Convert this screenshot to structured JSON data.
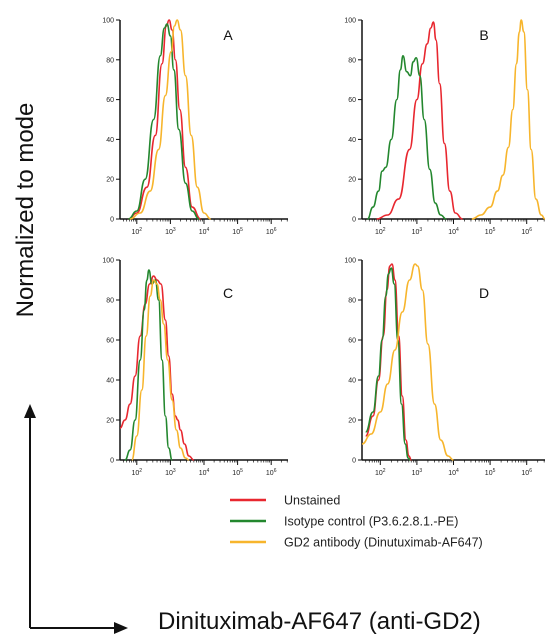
{
  "figure": {
    "ylabel": "Normalized to mode",
    "xlabel": "Dinituximab-AF647 (anti-GD2)"
  },
  "legend": [
    {
      "label": "Unstained",
      "color": "#e8272f"
    },
    {
      "label": "Isotype control (P3.6.2.8.1.-PE)",
      "color": "#23872e"
    },
    {
      "label": "GD2 antibody (Dinutuximab-AF647)",
      "color": "#f7b52c"
    }
  ],
  "chart_data": [
    {
      "type": "line",
      "title": "A",
      "xscale": "log",
      "xlim_exponent": [
        1.5,
        6.5
      ],
      "xticks": [
        "10^2",
        "10^3",
        "10^4",
        "10^5",
        "10^6"
      ],
      "ylim": [
        0,
        100
      ],
      "yticks": [
        0,
        20,
        40,
        60,
        80,
        100
      ],
      "series": [
        {
          "name": "Unstained",
          "color": "#e8272f",
          "points": [
            [
              1.75,
              0
            ],
            [
              2.0,
              3
            ],
            [
              2.3,
              16
            ],
            [
              2.55,
              42
            ],
            [
              2.75,
              78
            ],
            [
              2.88,
              97
            ],
            [
              2.96,
              100
            ],
            [
              3.05,
              95
            ],
            [
              3.15,
              80
            ],
            [
              3.28,
              55
            ],
            [
              3.45,
              26
            ],
            [
              3.65,
              6
            ],
            [
              3.9,
              0
            ]
          ]
        },
        {
          "name": "Isotype control (P3.6.2.8.1.-PE)",
          "color": "#23872e",
          "points": [
            [
              1.75,
              0
            ],
            [
              2.0,
              4
            ],
            [
              2.25,
              20
            ],
            [
              2.5,
              50
            ],
            [
              2.7,
              82
            ],
            [
              2.82,
              96
            ],
            [
              2.9,
              98
            ],
            [
              3.0,
              92
            ],
            [
              3.1,
              75
            ],
            [
              3.25,
              45
            ],
            [
              3.45,
              18
            ],
            [
              3.65,
              4
            ],
            [
              3.85,
              0
            ]
          ]
        },
        {
          "name": "GD2 antibody (Dinutuximab-AF647)",
          "color": "#f7b52c",
          "points": [
            [
              1.8,
              0
            ],
            [
              2.1,
              3
            ],
            [
              2.4,
              14
            ],
            [
              2.65,
              35
            ],
            [
              2.85,
              62
            ],
            [
              3.02,
              84
            ],
            [
              3.12,
              97
            ],
            [
              3.2,
              100
            ],
            [
              3.3,
              95
            ],
            [
              3.45,
              72
            ],
            [
              3.62,
              42
            ],
            [
              3.8,
              16
            ],
            [
              4.0,
              3
            ],
            [
              4.2,
              0
            ]
          ]
        }
      ]
    },
    {
      "type": "line",
      "title": "B",
      "xscale": "log",
      "xlim_exponent": [
        1.5,
        6.5
      ],
      "xticks": [
        "10^2",
        "10^3",
        "10^4",
        "10^5",
        "10^6"
      ],
      "ylim": [
        0,
        100
      ],
      "yticks": [
        0,
        20,
        40,
        60,
        80,
        100
      ],
      "series": [
        {
          "name": "Unstained",
          "color": "#e8272f",
          "points": [
            [
              1.9,
              0
            ],
            [
              2.2,
              2
            ],
            [
              2.5,
              10
            ],
            [
              2.8,
              35
            ],
            [
              3.0,
              60
            ],
            [
              3.15,
              78
            ],
            [
              3.28,
              88
            ],
            [
              3.38,
              96
            ],
            [
              3.45,
              99
            ],
            [
              3.52,
              90
            ],
            [
              3.62,
              68
            ],
            [
              3.75,
              38
            ],
            [
              3.9,
              14
            ],
            [
              4.05,
              3
            ],
            [
              4.25,
              0
            ]
          ]
        },
        {
          "name": "Isotype control (P3.6.2.8.1.-PE)",
          "color": "#23872e",
          "points": [
            [
              1.65,
              0
            ],
            [
              1.8,
              6
            ],
            [
              1.95,
              14
            ],
            [
              2.05,
              24
            ],
            [
              2.15,
              26
            ],
            [
              2.3,
              40
            ],
            [
              2.45,
              60
            ],
            [
              2.55,
              75
            ],
            [
              2.62,
              82
            ],
            [
              2.72,
              74
            ],
            [
              2.82,
              72
            ],
            [
              2.9,
              79
            ],
            [
              2.98,
              81
            ],
            [
              3.08,
              72
            ],
            [
              3.2,
              50
            ],
            [
              3.35,
              25
            ],
            [
              3.5,
              8
            ],
            [
              3.65,
              2
            ],
            [
              3.8,
              0
            ]
          ]
        },
        {
          "name": "GD2 antibody (Dinutuximab-AF647)",
          "color": "#f7b52c",
          "points": [
            [
              4.5,
              0
            ],
            [
              4.75,
              2
            ],
            [
              5.0,
              6
            ],
            [
              5.2,
              14
            ],
            [
              5.35,
              22
            ],
            [
              5.5,
              36
            ],
            [
              5.62,
              55
            ],
            [
              5.72,
              78
            ],
            [
              5.8,
              94
            ],
            [
              5.85,
              100
            ],
            [
              5.92,
              94
            ],
            [
              6.02,
              65
            ],
            [
              6.12,
              35
            ],
            [
              6.25,
              10
            ],
            [
              6.4,
              2
            ],
            [
              6.5,
              0
            ]
          ]
        }
      ]
    },
    {
      "type": "line",
      "title": "C",
      "xscale": "log",
      "xlim_exponent": [
        1.5,
        6.5
      ],
      "xticks": [
        "10^2",
        "10^3",
        "10^4",
        "10^5",
        "10^6"
      ],
      "ylim": [
        0,
        100
      ],
      "yticks": [
        0,
        20,
        40,
        60,
        80,
        100
      ],
      "series": [
        {
          "name": "Unstained",
          "color": "#e8272f",
          "points": [
            [
              1.5,
              16
            ],
            [
              1.65,
              20
            ],
            [
              1.8,
              28
            ],
            [
              1.95,
              42
            ],
            [
              2.1,
              62
            ],
            [
              2.25,
              78
            ],
            [
              2.38,
              88
            ],
            [
              2.5,
              92
            ],
            [
              2.6,
              90
            ],
            [
              2.72,
              88
            ],
            [
              2.85,
              70
            ],
            [
              2.95,
              52
            ],
            [
              3.05,
              33
            ],
            [
              3.15,
              22
            ],
            [
              3.22,
              20
            ],
            [
              3.3,
              15
            ],
            [
              3.42,
              8
            ],
            [
              3.55,
              2
            ],
            [
              3.7,
              0
            ]
          ]
        },
        {
          "name": "Isotype control (P3.6.2.8.1.-PE)",
          "color": "#23872e",
          "points": [
            [
              1.65,
              0
            ],
            [
              1.8,
              5
            ],
            [
              1.95,
              20
            ],
            [
              2.1,
              50
            ],
            [
              2.22,
              75
            ],
            [
              2.3,
              90
            ],
            [
              2.36,
              95
            ],
            [
              2.45,
              88
            ],
            [
              2.55,
              90
            ],
            [
              2.65,
              80
            ],
            [
              2.75,
              50
            ],
            [
              2.85,
              22
            ],
            [
              2.95,
              6
            ],
            [
              3.05,
              0
            ]
          ]
        },
        {
          "name": "GD2 antibody (Dinutuximab-AF647)",
          "color": "#f7b52c",
          "points": [
            [
              1.85,
              0
            ],
            [
              2.0,
              12
            ],
            [
              2.15,
              35
            ],
            [
              2.28,
              62
            ],
            [
              2.4,
              82
            ],
            [
              2.5,
              90
            ],
            [
              2.6,
              88
            ],
            [
              2.7,
              80
            ],
            [
              2.8,
              68
            ],
            [
              2.92,
              50
            ],
            [
              3.05,
              30
            ],
            [
              3.18,
              15
            ],
            [
              3.3,
              6
            ],
            [
              3.45,
              1
            ],
            [
              3.55,
              0
            ]
          ]
        }
      ]
    },
    {
      "type": "line",
      "title": "D",
      "xscale": "log",
      "xlim_exponent": [
        1.5,
        6.5
      ],
      "xticks": [
        "10^2",
        "10^3",
        "10^4",
        "10^5",
        "10^6"
      ],
      "ylim": [
        0,
        100
      ],
      "yticks": [
        0,
        20,
        40,
        60,
        80,
        100
      ],
      "series": [
        {
          "name": "Unstained",
          "color": "#e8272f",
          "points": [
            [
              1.6,
              12
            ],
            [
              1.8,
              22
            ],
            [
              1.95,
              40
            ],
            [
              2.08,
              62
            ],
            [
              2.18,
              85
            ],
            [
              2.26,
              97
            ],
            [
              2.32,
              98
            ],
            [
              2.4,
              90
            ],
            [
              2.5,
              62
            ],
            [
              2.6,
              32
            ],
            [
              2.7,
              10
            ],
            [
              2.78,
              2
            ],
            [
              2.85,
              0
            ]
          ]
        },
        {
          "name": "Isotype control (P3.6.2.8.1.-PE)",
          "color": "#23872e",
          "points": [
            [
              1.6,
              14
            ],
            [
              1.8,
              24
            ],
            [
              1.95,
              42
            ],
            [
              2.05,
              60
            ],
            [
              2.15,
              82
            ],
            [
              2.22,
              93
            ],
            [
              2.3,
              96
            ],
            [
              2.38,
              88
            ],
            [
              2.48,
              60
            ],
            [
              2.58,
              28
            ],
            [
              2.68,
              8
            ],
            [
              2.76,
              1
            ],
            [
              2.82,
              0
            ]
          ]
        },
        {
          "name": "GD2 antibody (Dinutuximab-AF647)",
          "color": "#f7b52c",
          "points": [
            [
              1.5,
              8
            ],
            [
              1.75,
              13
            ],
            [
              2.0,
              24
            ],
            [
              2.2,
              38
            ],
            [
              2.4,
              55
            ],
            [
              2.6,
              74
            ],
            [
              2.8,
              90
            ],
            [
              2.95,
              98
            ],
            [
              3.02,
              97
            ],
            [
              3.15,
              85
            ],
            [
              3.3,
              58
            ],
            [
              3.48,
              28
            ],
            [
              3.65,
              10
            ],
            [
              3.85,
              2
            ],
            [
              4.0,
              0
            ]
          ]
        }
      ]
    }
  ]
}
